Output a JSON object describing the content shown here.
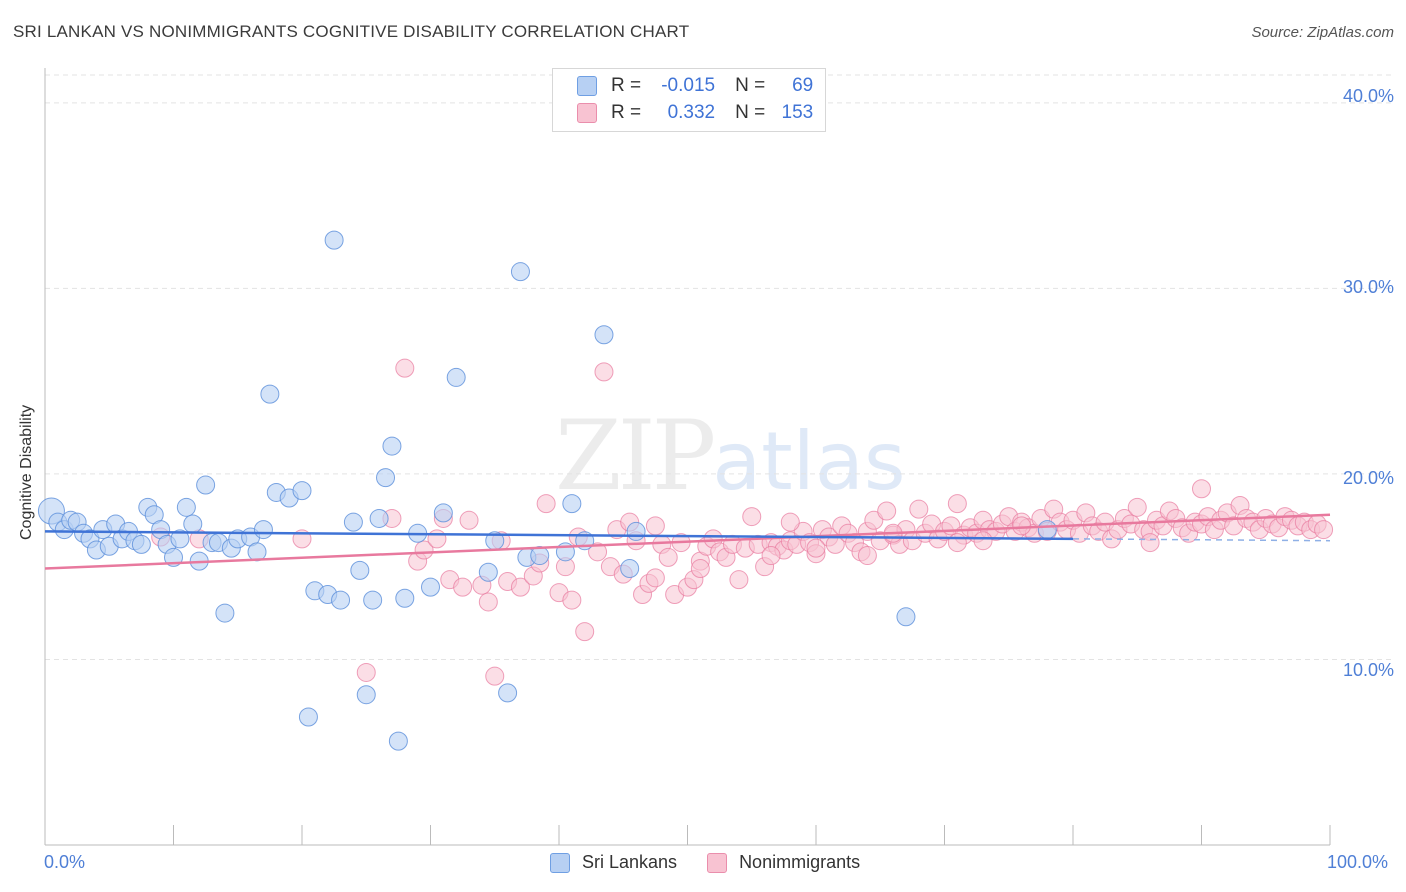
{
  "title": "SRI LANKAN VS NONIMMIGRANTS COGNITIVE DISABILITY CORRELATION CHART",
  "source": "Source: ZipAtlas.com",
  "watermark": {
    "zip": "ZIP",
    "atlas": "atlas"
  },
  "legend": {
    "rows": [
      {
        "r_label": "R =",
        "r_value": "-0.015",
        "n_label": "N =",
        "n_value": "69"
      },
      {
        "r_label": "R =",
        "r_value": "0.332",
        "n_label": "N =",
        "n_value": "153"
      }
    ]
  },
  "bottom_legend": {
    "series1": "Sri Lankans",
    "series2": "Nonimmigrants"
  },
  "colors": {
    "blue": "#5b8fdb",
    "blue_fill": "#b7d0f3",
    "pink": "#e8799e",
    "pink_fill": "#f8c3d2",
    "grid": "#e3e3e3"
  },
  "chart_data": {
    "type": "scatter",
    "title": "SRI LANKAN VS NONIMMIGRANTS COGNITIVE DISABILITY CORRELATION CHART",
    "xlabel": "",
    "ylabel": "Cognitive Disability",
    "xlim": [
      0,
      100
    ],
    "ylim": [
      0,
      41.5
    ],
    "x_ticks": [
      "0.0%",
      "100.0%"
    ],
    "y_ticks": [
      {
        "value": 10,
        "label": "10.0%"
      },
      {
        "value": 20,
        "label": "20.0%"
      },
      {
        "value": 30,
        "label": "30.0%"
      },
      {
        "value": 40,
        "label": "40.0%"
      }
    ],
    "grid": true,
    "legend_position": "top-center",
    "series": [
      {
        "name": "Sri Lankans",
        "R": -0.015,
        "N": 69,
        "trend": {
          "x": [
            0,
            80
          ],
          "y": [
            16.9,
            16.5
          ]
        },
        "trend_dashed": {
          "x": [
            80,
            100
          ],
          "y": [
            16.5,
            16.4
          ]
        },
        "points": [
          [
            0.5,
            18.0
          ],
          [
            1.0,
            17.4
          ],
          [
            1.5,
            17.0
          ],
          [
            2.0,
            17.5
          ],
          [
            2.5,
            17.4
          ],
          [
            3.0,
            16.8
          ],
          [
            3.5,
            16.5
          ],
          [
            4.0,
            15.9
          ],
          [
            4.5,
            17.0
          ],
          [
            5.0,
            16.1
          ],
          [
            5.5,
            17.3
          ],
          [
            6.0,
            16.5
          ],
          [
            6.5,
            16.9
          ],
          [
            7.0,
            16.4
          ],
          [
            7.5,
            16.2
          ],
          [
            8.0,
            18.2
          ],
          [
            8.5,
            17.8
          ],
          [
            9.0,
            17.0
          ],
          [
            9.5,
            16.2
          ],
          [
            10.0,
            15.5
          ],
          [
            10.5,
            16.5
          ],
          [
            11.0,
            18.2
          ],
          [
            11.5,
            17.3
          ],
          [
            12.0,
            15.3
          ],
          [
            12.5,
            19.4
          ],
          [
            13.0,
            16.3
          ],
          [
            13.5,
            16.3
          ],
          [
            14.0,
            12.5
          ],
          [
            14.5,
            16.0
          ],
          [
            15.0,
            16.5
          ],
          [
            16.0,
            16.6
          ],
          [
            16.5,
            15.8
          ],
          [
            17.0,
            17.0
          ],
          [
            17.5,
            24.3
          ],
          [
            18.0,
            19.0
          ],
          [
            19.0,
            18.7
          ],
          [
            20.0,
            19.1
          ],
          [
            20.5,
            6.9
          ],
          [
            21.0,
            13.7
          ],
          [
            22.0,
            13.5
          ],
          [
            22.5,
            32.6
          ],
          [
            23.0,
            13.2
          ],
          [
            24.0,
            17.4
          ],
          [
            24.5,
            14.8
          ],
          [
            25.0,
            8.1
          ],
          [
            25.5,
            13.2
          ],
          [
            26.0,
            17.6
          ],
          [
            26.5,
            19.8
          ],
          [
            27.0,
            21.5
          ],
          [
            27.5,
            5.6
          ],
          [
            28.0,
            13.3
          ],
          [
            29.0,
            16.8
          ],
          [
            30.0,
            13.9
          ],
          [
            31.0,
            17.9
          ],
          [
            32.0,
            25.2
          ],
          [
            34.5,
            14.7
          ],
          [
            35.0,
            16.4
          ],
          [
            36.0,
            8.2
          ],
          [
            37.0,
            30.9
          ],
          [
            37.5,
            15.5
          ],
          [
            38.5,
            15.6
          ],
          [
            40.5,
            15.8
          ],
          [
            41.0,
            18.4
          ],
          [
            42.0,
            16.4
          ],
          [
            43.5,
            27.5
          ],
          [
            45.5,
            14.9
          ],
          [
            46.0,
            16.9
          ],
          [
            67.0,
            12.3
          ],
          [
            78.0,
            17.0
          ]
        ]
      },
      {
        "name": "Nonimmigrants",
        "R": 0.332,
        "N": 153,
        "trend": {
          "x": [
            0,
            100
          ],
          "y": [
            14.9,
            17.8
          ]
        },
        "points": [
          [
            9.0,
            16.6
          ],
          [
            12.0,
            16.5
          ],
          [
            20.0,
            16.5
          ],
          [
            25.0,
            9.3
          ],
          [
            27.0,
            17.6
          ],
          [
            28.0,
            25.7
          ],
          [
            29.0,
            15.3
          ],
          [
            29.5,
            15.9
          ],
          [
            30.5,
            16.5
          ],
          [
            31.0,
            17.6
          ],
          [
            31.5,
            14.3
          ],
          [
            32.5,
            13.9
          ],
          [
            33.0,
            17.5
          ],
          [
            34.0,
            14.0
          ],
          [
            34.5,
            13.1
          ],
          [
            35.0,
            9.1
          ],
          [
            35.5,
            16.4
          ],
          [
            36.0,
            14.2
          ],
          [
            37.0,
            13.9
          ],
          [
            38.0,
            14.5
          ],
          [
            38.5,
            15.2
          ],
          [
            39.0,
            18.4
          ],
          [
            40.0,
            13.6
          ],
          [
            40.5,
            15.0
          ],
          [
            41.0,
            13.2
          ],
          [
            41.5,
            16.6
          ],
          [
            42.0,
            11.5
          ],
          [
            43.0,
            15.8
          ],
          [
            43.5,
            25.5
          ],
          [
            44.0,
            15.0
          ],
          [
            44.5,
            17.0
          ],
          [
            45.0,
            14.6
          ],
          [
            45.5,
            17.4
          ],
          [
            46.0,
            16.4
          ],
          [
            46.5,
            13.5
          ],
          [
            47.0,
            14.1
          ],
          [
            47.5,
            14.4
          ],
          [
            48.0,
            16.2
          ],
          [
            48.5,
            15.5
          ],
          [
            49.0,
            13.5
          ],
          [
            49.5,
            16.3
          ],
          [
            50.0,
            13.9
          ],
          [
            50.5,
            14.3
          ],
          [
            51.0,
            15.3
          ],
          [
            51.5,
            16.1
          ],
          [
            52.0,
            16.5
          ],
          [
            52.5,
            15.8
          ],
          [
            53.0,
            15.5
          ],
          [
            53.5,
            16.2
          ],
          [
            54.0,
            14.3
          ],
          [
            54.5,
            16.0
          ],
          [
            55.0,
            17.7
          ],
          [
            55.5,
            16.2
          ],
          [
            56.0,
            15.0
          ],
          [
            56.5,
            16.3
          ],
          [
            57.0,
            16.1
          ],
          [
            57.5,
            15.9
          ],
          [
            58.0,
            16.4
          ],
          [
            58.5,
            16.2
          ],
          [
            59.0,
            16.9
          ],
          [
            59.5,
            16.3
          ],
          [
            60.0,
            15.7
          ],
          [
            60.5,
            17.0
          ],
          [
            61.0,
            16.6
          ],
          [
            61.5,
            16.2
          ],
          [
            62.0,
            17.2
          ],
          [
            62.5,
            16.8
          ],
          [
            63.0,
            16.3
          ],
          [
            63.5,
            15.8
          ],
          [
            64.0,
            16.9
          ],
          [
            64.5,
            17.5
          ],
          [
            65.0,
            16.4
          ],
          [
            65.5,
            18.0
          ],
          [
            66.0,
            16.7
          ],
          [
            66.5,
            16.2
          ],
          [
            67.0,
            17.0
          ],
          [
            67.5,
            16.4
          ],
          [
            68.0,
            18.1
          ],
          [
            68.5,
            16.8
          ],
          [
            69.0,
            17.3
          ],
          [
            69.5,
            16.5
          ],
          [
            70.0,
            16.9
          ],
          [
            70.5,
            17.2
          ],
          [
            71.0,
            18.4
          ],
          [
            71.5,
            16.7
          ],
          [
            72.0,
            17.1
          ],
          [
            72.5,
            16.8
          ],
          [
            73.0,
            17.5
          ],
          [
            73.5,
            17.0
          ],
          [
            74.0,
            16.9
          ],
          [
            74.5,
            17.3
          ],
          [
            75.0,
            17.7
          ],
          [
            75.5,
            16.9
          ],
          [
            76.0,
            17.4
          ],
          [
            76.5,
            17.1
          ],
          [
            77.0,
            16.8
          ],
          [
            77.5,
            17.6
          ],
          [
            78.0,
            16.9
          ],
          [
            78.5,
            18.1
          ],
          [
            79.0,
            17.4
          ],
          [
            79.5,
            17.0
          ],
          [
            80.0,
            17.5
          ],
          [
            80.5,
            16.8
          ],
          [
            81.0,
            17.9
          ],
          [
            81.5,
            17.2
          ],
          [
            82.0,
            16.9
          ],
          [
            82.5,
            17.4
          ],
          [
            83.0,
            16.5
          ],
          [
            83.5,
            17.0
          ],
          [
            84.0,
            17.6
          ],
          [
            84.5,
            17.3
          ],
          [
            85.0,
            18.2
          ],
          [
            85.5,
            17.0
          ],
          [
            86.0,
            16.9
          ],
          [
            86.5,
            17.5
          ],
          [
            87.0,
            17.2
          ],
          [
            87.5,
            18.0
          ],
          [
            88.0,
            17.6
          ],
          [
            88.5,
            17.1
          ],
          [
            89.0,
            16.8
          ],
          [
            89.5,
            17.4
          ],
          [
            90.0,
            17.3
          ],
          [
            90.5,
            17.7
          ],
          [
            91.0,
            17.0
          ],
          [
            91.5,
            17.5
          ],
          [
            92.0,
            17.9
          ],
          [
            92.5,
            17.2
          ],
          [
            93.0,
            18.3
          ],
          [
            93.5,
            17.6
          ],
          [
            94.0,
            17.4
          ],
          [
            94.5,
            17.0
          ],
          [
            95.0,
            17.6
          ],
          [
            95.5,
            17.3
          ],
          [
            96.0,
            17.1
          ],
          [
            96.5,
            17.7
          ],
          [
            97.0,
            17.5
          ],
          [
            97.5,
            17.2
          ],
          [
            98.0,
            17.4
          ],
          [
            98.5,
            17.0
          ],
          [
            99.0,
            17.3
          ],
          [
            99.5,
            17.0
          ],
          [
            76.0,
            17.2
          ],
          [
            90.0,
            19.2
          ],
          [
            73.0,
            16.4
          ],
          [
            86.0,
            16.3
          ],
          [
            64.0,
            15.6
          ],
          [
            60.0,
            16.0
          ],
          [
            56.5,
            15.6
          ],
          [
            51.0,
            14.9
          ],
          [
            47.5,
            17.2
          ],
          [
            58.0,
            17.4
          ],
          [
            66.0,
            16.8
          ],
          [
            71.0,
            16.3
          ]
        ]
      }
    ]
  }
}
